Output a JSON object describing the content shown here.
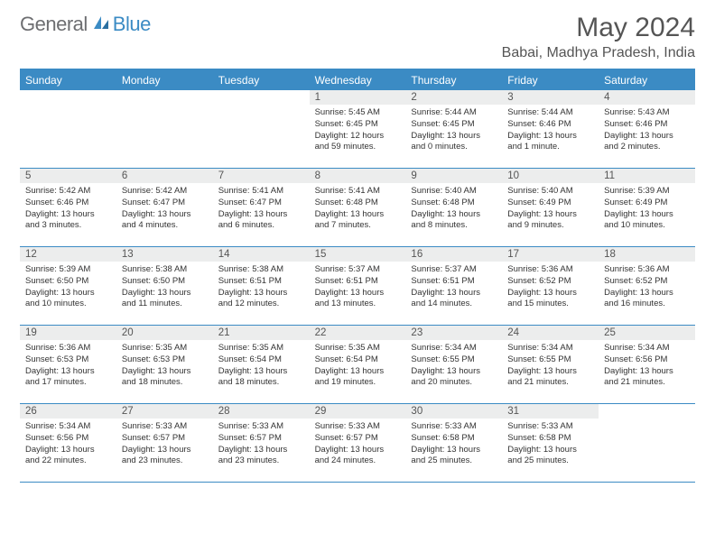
{
  "brand": {
    "text1": "General",
    "text2": "Blue"
  },
  "title": "May 2024",
  "location": "Babai, Madhya Pradesh, India",
  "colors": {
    "accent": "#3b8bc4",
    "header_bg": "#3b8bc4",
    "daynum_bg": "#eceded",
    "text_muted": "#555",
    "text_body": "#333",
    "logo_gray": "#6d6e71"
  },
  "day_labels": [
    "Sunday",
    "Monday",
    "Tuesday",
    "Wednesday",
    "Thursday",
    "Friday",
    "Saturday"
  ],
  "weeks": [
    [
      {
        "empty": true
      },
      {
        "empty": true
      },
      {
        "empty": true
      },
      {
        "n": "1",
        "sr": "5:45 AM",
        "ss": "6:45 PM",
        "d": "12 hours and 59 minutes."
      },
      {
        "n": "2",
        "sr": "5:44 AM",
        "ss": "6:45 PM",
        "d": "13 hours and 0 minutes."
      },
      {
        "n": "3",
        "sr": "5:44 AM",
        "ss": "6:46 PM",
        "d": "13 hours and 1 minute."
      },
      {
        "n": "4",
        "sr": "5:43 AM",
        "ss": "6:46 PM",
        "d": "13 hours and 2 minutes."
      }
    ],
    [
      {
        "n": "5",
        "sr": "5:42 AM",
        "ss": "6:46 PM",
        "d": "13 hours and 3 minutes."
      },
      {
        "n": "6",
        "sr": "5:42 AM",
        "ss": "6:47 PM",
        "d": "13 hours and 4 minutes."
      },
      {
        "n": "7",
        "sr": "5:41 AM",
        "ss": "6:47 PM",
        "d": "13 hours and 6 minutes."
      },
      {
        "n": "8",
        "sr": "5:41 AM",
        "ss": "6:48 PM",
        "d": "13 hours and 7 minutes."
      },
      {
        "n": "9",
        "sr": "5:40 AM",
        "ss": "6:48 PM",
        "d": "13 hours and 8 minutes."
      },
      {
        "n": "10",
        "sr": "5:40 AM",
        "ss": "6:49 PM",
        "d": "13 hours and 9 minutes."
      },
      {
        "n": "11",
        "sr": "5:39 AM",
        "ss": "6:49 PM",
        "d": "13 hours and 10 minutes."
      }
    ],
    [
      {
        "n": "12",
        "sr": "5:39 AM",
        "ss": "6:50 PM",
        "d": "13 hours and 10 minutes."
      },
      {
        "n": "13",
        "sr": "5:38 AM",
        "ss": "6:50 PM",
        "d": "13 hours and 11 minutes."
      },
      {
        "n": "14",
        "sr": "5:38 AM",
        "ss": "6:51 PM",
        "d": "13 hours and 12 minutes."
      },
      {
        "n": "15",
        "sr": "5:37 AM",
        "ss": "6:51 PM",
        "d": "13 hours and 13 minutes."
      },
      {
        "n": "16",
        "sr": "5:37 AM",
        "ss": "6:51 PM",
        "d": "13 hours and 14 minutes."
      },
      {
        "n": "17",
        "sr": "5:36 AM",
        "ss": "6:52 PM",
        "d": "13 hours and 15 minutes."
      },
      {
        "n": "18",
        "sr": "5:36 AM",
        "ss": "6:52 PM",
        "d": "13 hours and 16 minutes."
      }
    ],
    [
      {
        "n": "19",
        "sr": "5:36 AM",
        "ss": "6:53 PM",
        "d": "13 hours and 17 minutes."
      },
      {
        "n": "20",
        "sr": "5:35 AM",
        "ss": "6:53 PM",
        "d": "13 hours and 18 minutes."
      },
      {
        "n": "21",
        "sr": "5:35 AM",
        "ss": "6:54 PM",
        "d": "13 hours and 18 minutes."
      },
      {
        "n": "22",
        "sr": "5:35 AM",
        "ss": "6:54 PM",
        "d": "13 hours and 19 minutes."
      },
      {
        "n": "23",
        "sr": "5:34 AM",
        "ss": "6:55 PM",
        "d": "13 hours and 20 minutes."
      },
      {
        "n": "24",
        "sr": "5:34 AM",
        "ss": "6:55 PM",
        "d": "13 hours and 21 minutes."
      },
      {
        "n": "25",
        "sr": "5:34 AM",
        "ss": "6:56 PM",
        "d": "13 hours and 21 minutes."
      }
    ],
    [
      {
        "n": "26",
        "sr": "5:34 AM",
        "ss": "6:56 PM",
        "d": "13 hours and 22 minutes."
      },
      {
        "n": "27",
        "sr": "5:33 AM",
        "ss": "6:57 PM",
        "d": "13 hours and 23 minutes."
      },
      {
        "n": "28",
        "sr": "5:33 AM",
        "ss": "6:57 PM",
        "d": "13 hours and 23 minutes."
      },
      {
        "n": "29",
        "sr": "5:33 AM",
        "ss": "6:57 PM",
        "d": "13 hours and 24 minutes."
      },
      {
        "n": "30",
        "sr": "5:33 AM",
        "ss": "6:58 PM",
        "d": "13 hours and 25 minutes."
      },
      {
        "n": "31",
        "sr": "5:33 AM",
        "ss": "6:58 PM",
        "d": "13 hours and 25 minutes."
      },
      {
        "empty": true
      }
    ]
  ],
  "labels": {
    "sunrise": "Sunrise:",
    "sunset": "Sunset:",
    "daylight": "Daylight:"
  }
}
